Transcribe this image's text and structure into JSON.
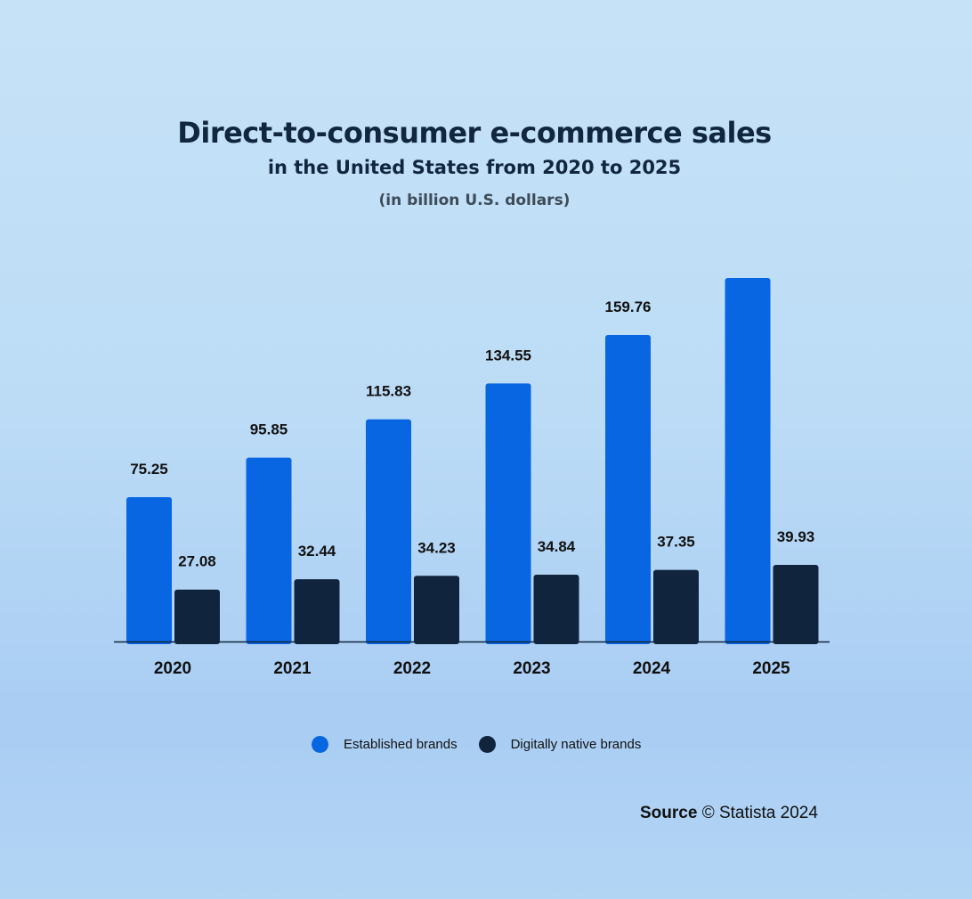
{
  "title": "Direct-to-consumer e-commerce sales",
  "subtitle": "in the United States from 2020 to 2025",
  "unit_note": "(in billion U.S. dollars)",
  "source": {
    "label": "Source",
    "text": "© Statista 2024"
  },
  "colors": {
    "established": "#0866e3",
    "digital": "#11243d"
  },
  "chart_data": {
    "type": "bar",
    "categories": [
      "2020",
      "2021",
      "2022",
      "2023",
      "2024",
      "2025"
    ],
    "series": [
      {
        "name": "Established brands",
        "values": [
          75.25,
          95.85,
          115.83,
          134.55,
          159.76,
          189.5
        ],
        "labels": [
          "75.25",
          "95.85",
          "115.83",
          "134.55",
          "159.76",
          null
        ]
      },
      {
        "name": "Digitally native brands",
        "values": [
          27.08,
          32.44,
          34.23,
          34.84,
          37.35,
          39.93
        ],
        "labels": [
          "27.08",
          "32.44",
          "34.23",
          "34.84",
          "37.35",
          "39.93"
        ]
      }
    ],
    "legend": "bottom",
    "grid": false,
    "ylim": [
      0,
      200
    ]
  }
}
